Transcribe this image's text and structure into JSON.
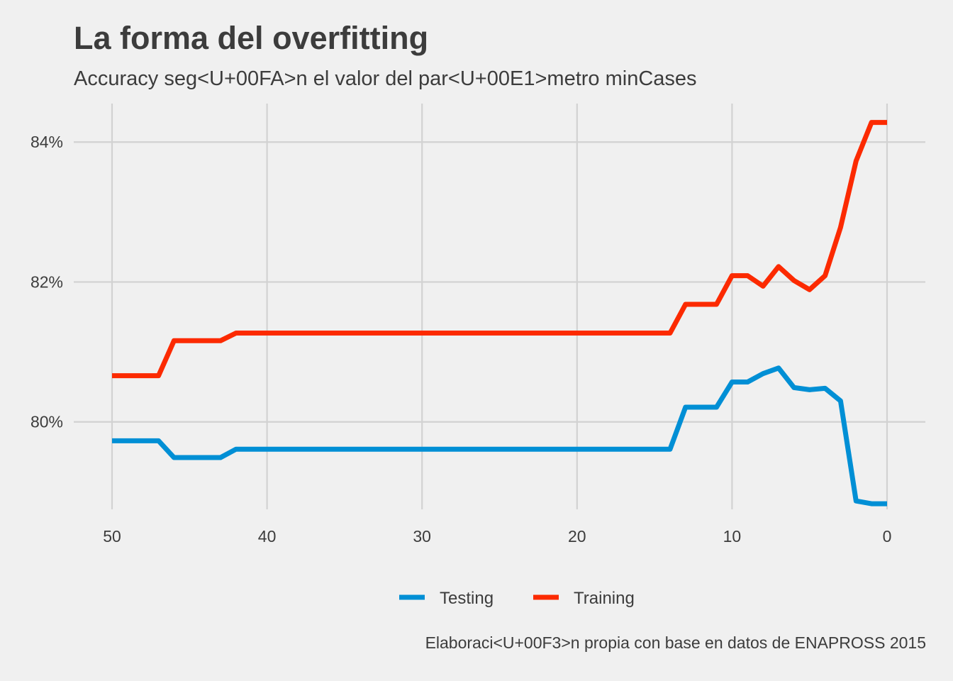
{
  "chart_data": {
    "type": "line",
    "title": "La forma del overfitting",
    "subtitle": "Accuracy seg<U+00FA>n el valor del par<U+00E1>metro minCases",
    "caption": "Elaboraci<U+00F3>n propia con base en datos de ENAPROSS 2015",
    "xlabel": "",
    "ylabel": "",
    "x_reversed": true,
    "xlim": [
      50,
      0
    ],
    "ylim": [
      78.75,
      84.55
    ],
    "x_ticks": [
      50,
      40,
      30,
      20,
      10,
      0
    ],
    "x_tick_labels": [
      "50",
      "40",
      "30",
      "20",
      "10",
      "0"
    ],
    "y_ticks": [
      80,
      82,
      84
    ],
    "y_tick_labels": [
      "80%",
      "82%",
      "84%"
    ],
    "grid": true,
    "legend_position": "bottom",
    "x": [
      50,
      49,
      48,
      47,
      46,
      45,
      44,
      43,
      42,
      41,
      40,
      39,
      38,
      37,
      36,
      35,
      34,
      33,
      32,
      31,
      30,
      29,
      28,
      27,
      26,
      25,
      24,
      23,
      22,
      21,
      20,
      19,
      18,
      17,
      16,
      15,
      14,
      13,
      12,
      11,
      10,
      9,
      8,
      7,
      6,
      5,
      4,
      3,
      2,
      1,
      0
    ],
    "series": [
      {
        "name": "Testing",
        "color": "#008fd5",
        "values": [
          79.73,
          79.73,
          79.73,
          79.73,
          79.49,
          79.49,
          79.49,
          79.49,
          79.61,
          79.61,
          79.61,
          79.61,
          79.61,
          79.61,
          79.61,
          79.61,
          79.61,
          79.61,
          79.61,
          79.61,
          79.61,
          79.61,
          79.61,
          79.61,
          79.61,
          79.61,
          79.61,
          79.61,
          79.61,
          79.61,
          79.61,
          79.61,
          79.61,
          79.61,
          79.61,
          79.61,
          79.61,
          80.21,
          80.21,
          80.21,
          80.57,
          80.57,
          80.69,
          80.77,
          80.49,
          80.46,
          80.48,
          80.3,
          78.87,
          78.83,
          78.83
        ]
      },
      {
        "name": "Training",
        "color": "#fc2a00",
        "values": [
          80.66,
          80.66,
          80.66,
          80.66,
          81.16,
          81.16,
          81.16,
          81.16,
          81.27,
          81.27,
          81.27,
          81.27,
          81.27,
          81.27,
          81.27,
          81.27,
          81.27,
          81.27,
          81.27,
          81.27,
          81.27,
          81.27,
          81.27,
          81.27,
          81.27,
          81.27,
          81.27,
          81.27,
          81.27,
          81.27,
          81.27,
          81.27,
          81.27,
          81.27,
          81.27,
          81.27,
          81.27,
          81.68,
          81.68,
          81.68,
          82.09,
          82.09,
          81.94,
          82.22,
          82.02,
          81.89,
          82.09,
          82.78,
          83.73,
          84.28,
          84.28
        ]
      }
    ]
  }
}
